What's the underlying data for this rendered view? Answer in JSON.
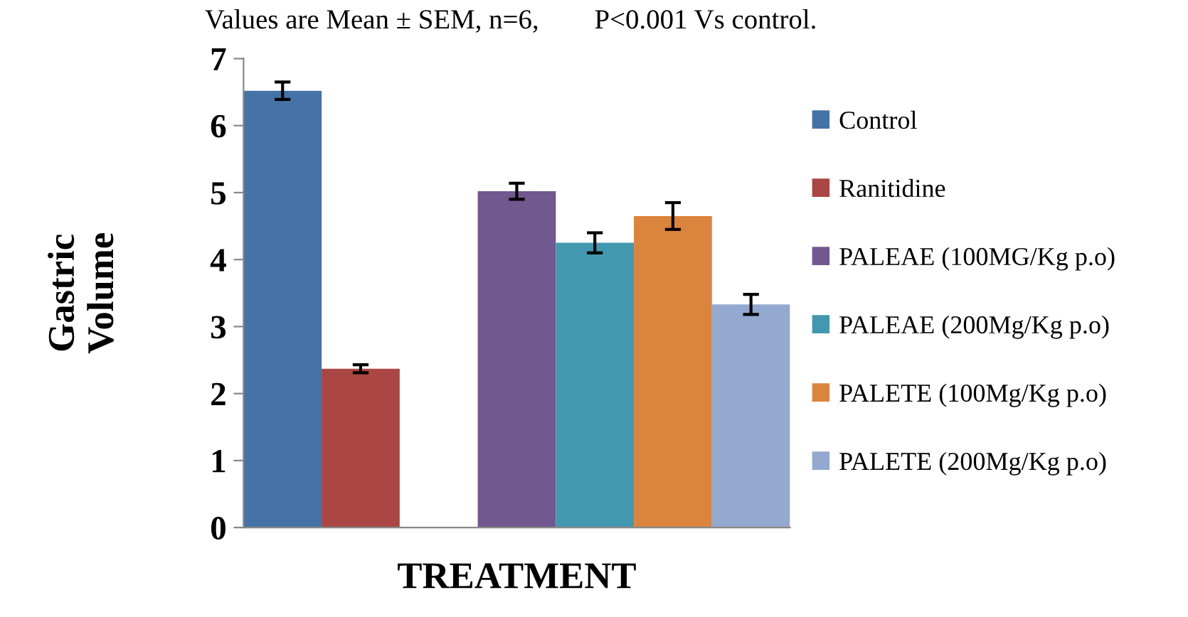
{
  "chart_data": {
    "type": "bar",
    "xlabel": "TREATMENT",
    "ylabel": "Gastric\nVolume",
    "annotations": [
      "Values are Mean ± SEM, n=6,        P<0.001 Vs control."
    ],
    "categories": [
      null,
      null,
      null,
      null,
      null,
      null,
      null
    ],
    "ylim": [
      0,
      7
    ],
    "yticks": [
      0,
      1,
      2,
      3,
      4,
      5,
      6,
      7
    ],
    "grid": false,
    "legend": "right",
    "series": [
      {
        "name": "Control",
        "color": "#4572a7",
        "values": [
          6.52,
          null,
          null,
          null,
          null,
          null,
          null
        ],
        "errors": [
          0.13,
          null,
          null,
          null,
          null,
          null,
          null
        ]
      },
      {
        "name": "Ranitidine",
        "color": "#aa4643",
        "values": [
          null,
          2.37,
          null,
          null,
          null,
          null,
          null
        ],
        "errors": [
          null,
          0.06,
          null,
          null,
          null,
          null,
          null
        ]
      },
      {
        "name": "PALEAE (100MG/Kg p.o)",
        "color": "#71588f",
        "values": [
          null,
          null,
          null,
          5.02,
          null,
          null,
          null
        ],
        "errors": [
          null,
          null,
          null,
          0.12,
          null,
          null,
          null
        ]
      },
      {
        "name": "PALEAE (200Mg/Kg p.o)",
        "color": "#4198af",
        "values": [
          null,
          null,
          null,
          null,
          4.25,
          null,
          null
        ],
        "errors": [
          null,
          null,
          null,
          null,
          0.15,
          null,
          null
        ]
      },
      {
        "name": "PALETE (100Mg/Kg p.o)",
        "color": "#db843d",
        "values": [
          null,
          null,
          null,
          null,
          null,
          4.65,
          null
        ],
        "errors": [
          null,
          null,
          null,
          null,
          null,
          0.2,
          null
        ]
      },
      {
        "name": "PALETE (200Mg/Kg p.o)",
        "color": "#93a9cf",
        "values": [
          null,
          null,
          null,
          null,
          null,
          null,
          3.33
        ],
        "errors": [
          null,
          null,
          null,
          null,
          null,
          null,
          0.15
        ]
      }
    ]
  }
}
